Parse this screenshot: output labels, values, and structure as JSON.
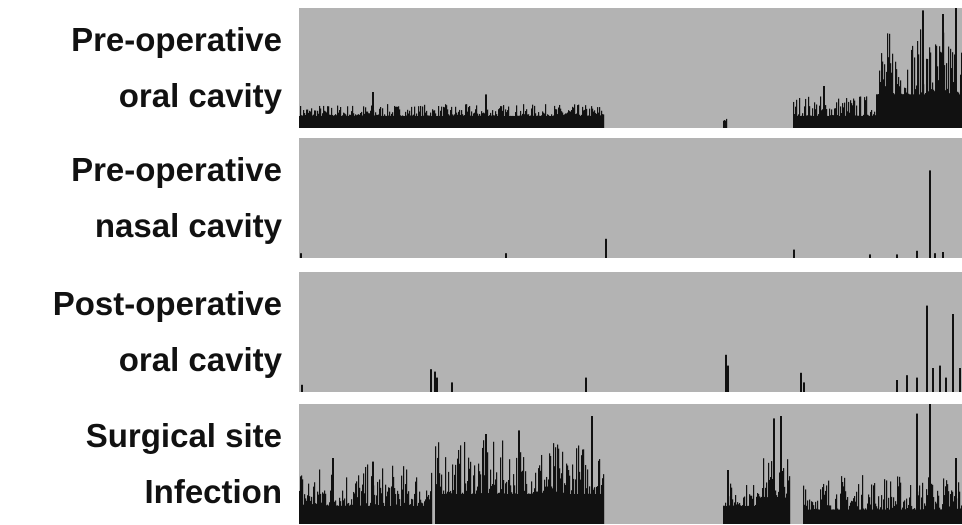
{
  "colors": {
    "background": "#ffffff",
    "track": "#b3b3b3",
    "bars": "#111111"
  },
  "chart_data": {
    "type": "bar",
    "tracks": [
      {
        "label_lines": [
          "Pre-operative",
          "oral cavity"
        ],
        "regions": [
          {
            "start": 0.0,
            "end": 0.46,
            "base": 0.1,
            "spread": 0.1,
            "peaks": [
              {
                "x": 0.11,
                "h": 0.3
              },
              {
                "x": 0.28,
                "h": 0.28
              }
            ]
          },
          {
            "start": 0.64,
            "end": 0.645,
            "base": 0.06,
            "spread": 0.02,
            "peaks": []
          },
          {
            "start": 0.745,
            "end": 0.87,
            "base": 0.1,
            "spread": 0.18,
            "peaks": [
              {
                "x": 0.79,
                "h": 0.35
              }
            ]
          },
          {
            "start": 0.87,
            "end": 1.0,
            "base": 0.28,
            "spread": 0.55,
            "peaks": [
              {
                "x": 0.94,
                "h": 0.98
              },
              {
                "x": 0.97,
                "h": 0.95
              },
              {
                "x": 0.99,
                "h": 1.0
              }
            ]
          }
        ]
      },
      {
        "label_lines": [
          "Pre-operative",
          "nasal cavity"
        ],
        "regions": [
          {
            "start": 0.0,
            "end": 1.0,
            "base": 0.0,
            "spread": 0.0,
            "peaks": [
              {
                "x": 0.002,
                "h": 0.04
              },
              {
                "x": 0.31,
                "h": 0.04
              },
              {
                "x": 0.462,
                "h": 0.16
              },
              {
                "x": 0.745,
                "h": 0.07
              },
              {
                "x": 0.86,
                "h": 0.03
              },
              {
                "x": 0.9,
                "h": 0.03
              },
              {
                "x": 0.93,
                "h": 0.06
              },
              {
                "x": 0.95,
                "h": 0.73
              },
              {
                "x": 0.958,
                "h": 0.04
              },
              {
                "x": 0.97,
                "h": 0.05
              }
            ]
          }
        ]
      },
      {
        "label_lines": [
          "Post-operative",
          "oral cavity"
        ],
        "regions": [
          {
            "start": 0.0,
            "end": 1.0,
            "base": 0.0,
            "spread": 0.0,
            "peaks": [
              {
                "x": 0.003,
                "h": 0.06
              },
              {
                "x": 0.198,
                "h": 0.19
              },
              {
                "x": 0.203,
                "h": 0.17
              },
              {
                "x": 0.207,
                "h": 0.12
              },
              {
                "x": 0.23,
                "h": 0.08
              },
              {
                "x": 0.432,
                "h": 0.12
              },
              {
                "x": 0.643,
                "h": 0.31
              },
              {
                "x": 0.646,
                "h": 0.22
              },
              {
                "x": 0.755,
                "h": 0.16
              },
              {
                "x": 0.76,
                "h": 0.08
              },
              {
                "x": 0.9,
                "h": 0.1
              },
              {
                "x": 0.915,
                "h": 0.14
              },
              {
                "x": 0.93,
                "h": 0.12
              },
              {
                "x": 0.945,
                "h": 0.72
              },
              {
                "x": 0.955,
                "h": 0.2
              },
              {
                "x": 0.965,
                "h": 0.22
              },
              {
                "x": 0.975,
                "h": 0.12
              },
              {
                "x": 0.985,
                "h": 0.65
              },
              {
                "x": 0.995,
                "h": 0.2
              }
            ]
          }
        ]
      },
      {
        "label_lines": [
          "Surgical site",
          "Infection"
        ],
        "regions": [
          {
            "start": 0.0,
            "end": 0.2,
            "base": 0.15,
            "spread": 0.35,
            "peaks": [
              {
                "x": 0.05,
                "h": 0.55
              },
              {
                "x": 0.11,
                "h": 0.52
              }
            ]
          },
          {
            "start": 0.205,
            "end": 0.46,
            "base": 0.25,
            "spread": 0.45,
            "peaks": [
              {
                "x": 0.28,
                "h": 0.75
              },
              {
                "x": 0.33,
                "h": 0.78
              },
              {
                "x": 0.44,
                "h": 0.9
              }
            ]
          },
          {
            "start": 0.64,
            "end": 0.69,
            "base": 0.15,
            "spread": 0.2,
            "peaks": [
              {
                "x": 0.645,
                "h": 0.45
              }
            ]
          },
          {
            "start": 0.69,
            "end": 0.74,
            "base": 0.22,
            "spread": 0.35,
            "peaks": [
              {
                "x": 0.715,
                "h": 0.88
              },
              {
                "x": 0.725,
                "h": 0.9
              }
            ]
          },
          {
            "start": 0.76,
            "end": 1.0,
            "base": 0.12,
            "spread": 0.3,
            "peaks": [
              {
                "x": 0.93,
                "h": 0.92
              },
              {
                "x": 0.95,
                "h": 1.0
              },
              {
                "x": 0.99,
                "h": 0.55
              }
            ]
          }
        ]
      }
    ]
  }
}
